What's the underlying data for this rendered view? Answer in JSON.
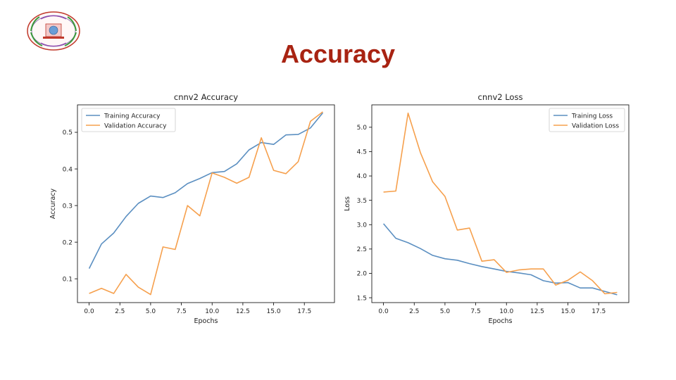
{
  "slide": {
    "title": "Accuracy"
  },
  "colors": {
    "title": "#a82312",
    "training": "#5b8fc1",
    "validation": "#f6a04d"
  },
  "chart_data": [
    {
      "type": "line",
      "title": "cnnv2 Accuracy",
      "xlabel": "Epochs",
      "ylabel": "Accuracy",
      "xlim": [
        -0.95,
        19.95
      ],
      "ylim": [
        0.035,
        0.575
      ],
      "xticks": [
        0.0,
        2.5,
        5.0,
        7.5,
        10.0,
        12.5,
        15.0,
        17.5
      ],
      "xtick_labels": [
        "0.0",
        "2.5",
        "5.0",
        "7.5",
        "10.0",
        "12.5",
        "15.0",
        "17.5"
      ],
      "yticks": [
        0.1,
        0.2,
        0.3,
        0.4,
        0.5
      ],
      "ytick_labels": [
        "0.1",
        "0.2",
        "0.3",
        "0.4",
        "0.5"
      ],
      "grid": false,
      "legend": "upper-left",
      "x": [
        0,
        1,
        2,
        3,
        4,
        5,
        6,
        7,
        8,
        9,
        10,
        11,
        12,
        13,
        14,
        15,
        16,
        17,
        18,
        19
      ],
      "series": [
        {
          "name": "Training Accuracy",
          "color": "#5b8fc1",
          "values": [
            0.128,
            0.195,
            0.225,
            0.27,
            0.306,
            0.326,
            0.322,
            0.335,
            0.36,
            0.374,
            0.39,
            0.393,
            0.414,
            0.452,
            0.472,
            0.467,
            0.493,
            0.494,
            0.512,
            0.553
          ]
        },
        {
          "name": "Validation Accuracy",
          "color": "#f6a04d",
          "values": [
            0.06,
            0.074,
            0.06,
            0.112,
            0.077,
            0.057,
            0.187,
            0.18,
            0.3,
            0.272,
            0.389,
            0.377,
            0.361,
            0.377,
            0.485,
            0.396,
            0.387,
            0.42,
            0.53,
            0.556
          ]
        }
      ]
    },
    {
      "type": "line",
      "title": "cnnv2 Loss",
      "xlabel": "Epochs",
      "ylabel": "Loss",
      "xlim": [
        -0.95,
        19.95
      ],
      "ylim": [
        1.4,
        5.46
      ],
      "xticks": [
        0.0,
        2.5,
        5.0,
        7.5,
        10.0,
        12.5,
        15.0,
        17.5
      ],
      "xtick_labels": [
        "0.0",
        "2.5",
        "5.0",
        "7.5",
        "10.0",
        "12.5",
        "15.0",
        "17.5"
      ],
      "yticks": [
        1.5,
        2.0,
        2.5,
        3.0,
        3.5,
        4.0,
        4.5,
        5.0
      ],
      "ytick_labels": [
        "1.5",
        "2.0",
        "2.5",
        "3.0",
        "3.5",
        "4.0",
        "4.5",
        "5.0"
      ],
      "grid": false,
      "legend": "upper-right",
      "x": [
        0,
        1,
        2,
        3,
        4,
        5,
        6,
        7,
        8,
        9,
        10,
        11,
        12,
        13,
        14,
        15,
        16,
        17,
        18,
        19
      ],
      "series": [
        {
          "name": "Training Loss",
          "color": "#5b8fc1",
          "values": [
            3.02,
            2.72,
            2.63,
            2.51,
            2.37,
            2.3,
            2.27,
            2.2,
            2.14,
            2.09,
            2.04,
            2.01,
            1.97,
            1.85,
            1.8,
            1.81,
            1.7,
            1.7,
            1.63,
            1.56
          ]
        },
        {
          "name": "Validation Loss",
          "color": "#f6a04d",
          "values": [
            3.67,
            3.69,
            5.29,
            4.48,
            3.88,
            3.58,
            2.89,
            2.93,
            2.25,
            2.28,
            2.02,
            2.07,
            2.09,
            2.09,
            1.76,
            1.86,
            2.03,
            1.85,
            1.58,
            1.61
          ]
        }
      ]
    }
  ]
}
